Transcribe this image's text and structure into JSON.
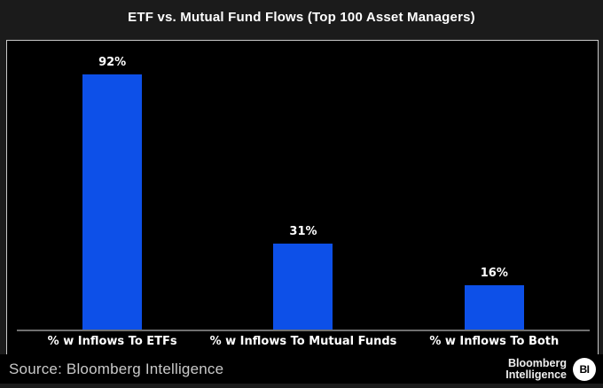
{
  "header": {
    "title": "ETF vs. Mutual Fund Flows (Top 100 Asset Managers)"
  },
  "chart_data": {
    "type": "bar",
    "categories": [
      "% w Inflows To ETFs",
      "% w Inflows To Mutual Funds",
      "% w Inflows To Both"
    ],
    "values": [
      92,
      31,
      16
    ],
    "value_labels": [
      "92%",
      "31%",
      "16%"
    ],
    "title": "ETF vs. Mutual Fund Flows (Top 100 Asset Managers)",
    "xlabel": "",
    "ylabel": "",
    "ylim": [
      0,
      104
    ],
    "grid": false,
    "legend": false,
    "bar_color": "#0d50e8",
    "plot_background": "#000000",
    "axis_line_color": "#6f6f6f"
  },
  "footer": {
    "source_text": "Source: Bloomberg Intelligence",
    "logo_line1": "Bloomberg",
    "logo_line2": "Intelligence",
    "logo_badge": "BI"
  },
  "colors": {
    "window_background": "#1b1b1b",
    "frame_border": "#c9c9c9",
    "title_text": "#ffffff",
    "label_text": "#ffffff",
    "source_text": "#c9c9c9"
  }
}
